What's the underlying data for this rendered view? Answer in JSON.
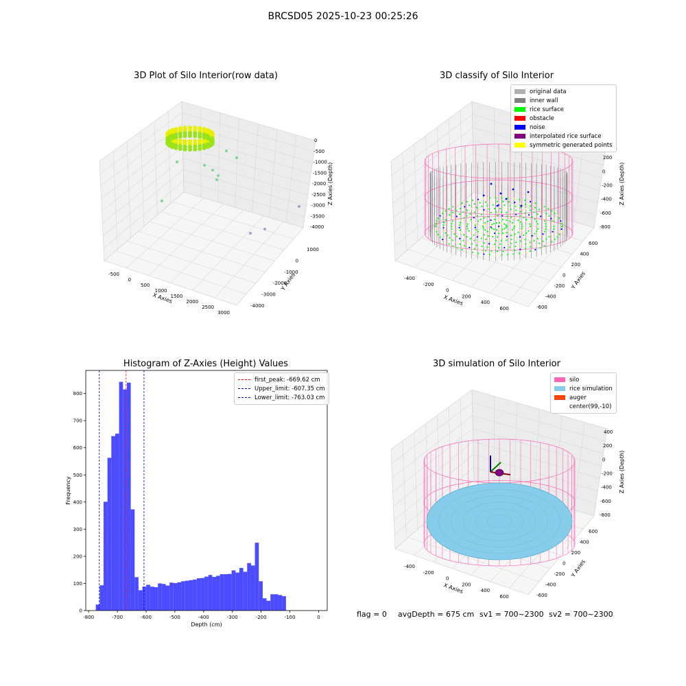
{
  "suptitle": "BRCSD05 2025-10-23 00:25:26",
  "colors": {
    "hist_bar": "#4b4bff",
    "peak_line": "#ff0000",
    "limit_line": "#0000cc",
    "silo": "#ff69b4",
    "rice_sim": "#87cdeb",
    "auger": "#ff4500",
    "rice_surface": "#00ff00",
    "noise": "#0000ff",
    "inner_wall": "#808080",
    "original": "#b0b0b0"
  },
  "panels": {
    "raw": {
      "title": "3D Plot of Silo Interior(row data)",
      "xlabel": "X Axies",
      "ylabel": "Y Axies",
      "zlabel": "Z Axies (Depth)",
      "xticks": [
        "-500",
        "0",
        "500",
        "1000",
        "1500",
        "2000",
        "2500",
        "3000"
      ],
      "yticks": [
        "1000",
        "0",
        "-1000",
        "-2000",
        "-3000",
        "-4000"
      ],
      "zticks": [
        "0",
        "-500",
        "-1000",
        "-1500",
        "-2000",
        "-2500",
        "-3000",
        "-3500",
        "-4000"
      ]
    },
    "classify": {
      "title": "3D classify of Silo Interior",
      "xlabel": "X Axies",
      "ylabel": "Y Axies",
      "zlabel": "Z Axies (Depth)",
      "xticks": [
        "-400",
        "-200",
        "0",
        "200",
        "400",
        "600"
      ],
      "yticks": [
        "600",
        "400",
        "200",
        "0",
        "-200",
        "-400",
        "-600"
      ],
      "zticks": [
        "400",
        "200",
        "0",
        "-200",
        "-400",
        "-600",
        "-800"
      ],
      "legend": [
        {
          "label": "original data",
          "color": "#b0b0b0"
        },
        {
          "label": "inner wall",
          "color": "#808080"
        },
        {
          "label": "rice surface",
          "color": "#00ff00"
        },
        {
          "label": "obstacle",
          "color": "#ff0000"
        },
        {
          "label": "noise",
          "color": "#0000ff"
        },
        {
          "label": "interpolated rice surface",
          "color": "#800080"
        },
        {
          "label": "symmetric generated points",
          "color": "#ffff00"
        }
      ]
    },
    "sim": {
      "title": "3D simulation of Silo Interior",
      "xlabel": "X Axies",
      "ylabel": "Y Axies",
      "zlabel": "Z Axies (Depth)",
      "xticks": [
        "-400",
        "-200",
        "0",
        "200",
        "400",
        "600"
      ],
      "yticks": [
        "600",
        "400",
        "200",
        "0",
        "-200",
        "-400",
        "-600"
      ],
      "zticks": [
        "400",
        "200",
        "0",
        "-200",
        "-400",
        "-600",
        "-800"
      ],
      "legend": [
        {
          "label": "silo",
          "color": "#ff69b4"
        },
        {
          "label": "rice simulation",
          "color": "#87cdeb"
        },
        {
          "label": "auger",
          "color": "#ff4500"
        },
        {
          "label": "center(99,-10)",
          "color": "#ffffff"
        }
      ]
    }
  },
  "status": {
    "flag": "flag = 0",
    "avg_depth": "avgDepth = 675 cm",
    "sv1": "sv1 = 700~2300",
    "sv2": "sv2 = 700~2300"
  },
  "chart_data": [
    {
      "type": "histogram",
      "title": "Histogram of Z-Axies (Height) Values",
      "xlabel": "Depth (cm)",
      "ylabel": "Frequency",
      "xlim": [
        -810,
        30
      ],
      "ylim": [
        0,
        885
      ],
      "xticks": [
        -800,
        -700,
        -600,
        -500,
        -400,
        -300,
        -200,
        -100,
        0
      ],
      "yticks": [
        0,
        100,
        200,
        300,
        400,
        500,
        600,
        700,
        800
      ],
      "bin_width": 13.5,
      "bins": [
        {
          "x0": -775,
          "v": 22
        },
        {
          "x0": -761.5,
          "v": 93
        },
        {
          "x0": -748,
          "v": 401
        },
        {
          "x0": -734.5,
          "v": 563
        },
        {
          "x0": -721,
          "v": 643
        },
        {
          "x0": -707.5,
          "v": 652
        },
        {
          "x0": -694,
          "v": 843
        },
        {
          "x0": -680.5,
          "v": 815
        },
        {
          "x0": -667,
          "v": 840
        },
        {
          "x0": -653.5,
          "v": 373
        },
        {
          "x0": -640,
          "v": 123
        },
        {
          "x0": -626.5,
          "v": 75
        },
        {
          "x0": -613,
          "v": 88
        },
        {
          "x0": -599.5,
          "v": 95
        },
        {
          "x0": -586,
          "v": 88
        },
        {
          "x0": -572.5,
          "v": 86
        },
        {
          "x0": -559,
          "v": 100
        },
        {
          "x0": -545.5,
          "v": 98
        },
        {
          "x0": -532,
          "v": 92
        },
        {
          "x0": -518.5,
          "v": 103
        },
        {
          "x0": -505,
          "v": 101
        },
        {
          "x0": -491.5,
          "v": 104
        },
        {
          "x0": -478,
          "v": 108
        },
        {
          "x0": -464.5,
          "v": 110
        },
        {
          "x0": -451,
          "v": 112
        },
        {
          "x0": -437.5,
          "v": 114
        },
        {
          "x0": -424,
          "v": 119
        },
        {
          "x0": -410.5,
          "v": 120
        },
        {
          "x0": -397,
          "v": 125
        },
        {
          "x0": -383.5,
          "v": 131
        },
        {
          "x0": -370,
          "v": 124
        },
        {
          "x0": -356.5,
          "v": 128
        },
        {
          "x0": -343,
          "v": 134
        },
        {
          "x0": -329.5,
          "v": 134
        },
        {
          "x0": -316,
          "v": 135
        },
        {
          "x0": -302.5,
          "v": 148
        },
        {
          "x0": -289,
          "v": 140
        },
        {
          "x0": -275.5,
          "v": 157
        },
        {
          "x0": -262,
          "v": 143
        },
        {
          "x0": -248.5,
          "v": 175
        },
        {
          "x0": -235,
          "v": 166
        },
        {
          "x0": -221.5,
          "v": 250
        },
        {
          "x0": -208,
          "v": 108
        },
        {
          "x0": -194.5,
          "v": 45
        },
        {
          "x0": -181,
          "v": 36
        },
        {
          "x0": -167.5,
          "v": 60
        },
        {
          "x0": -154,
          "v": 60
        },
        {
          "x0": -140.5,
          "v": 57
        },
        {
          "x0": -127,
          "v": 53
        }
      ],
      "vlines": [
        {
          "label": "first_peak: -669.62 cm",
          "x": -669.62,
          "color": "#ff0000"
        },
        {
          "label": "Upper_limit: -607.35 cm",
          "x": -607.35,
          "color": "#0000cc"
        },
        {
          "label": "Lower_limit: -763.03 cm",
          "x": -763.03,
          "color": "#0000cc"
        }
      ]
    }
  ]
}
